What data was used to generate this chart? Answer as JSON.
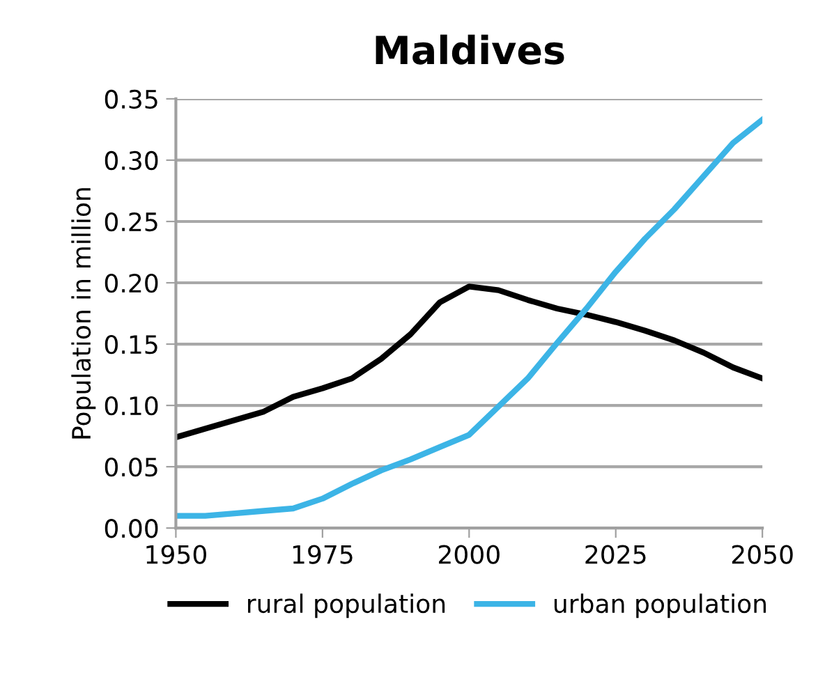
{
  "chart_data": {
    "type": "line",
    "title": "Maldives",
    "ylabel": "Population in million",
    "x": [
      1950,
      1955,
      1960,
      1965,
      1970,
      1975,
      1980,
      1985,
      1990,
      1995,
      2000,
      2005,
      2010,
      2015,
      2020,
      2025,
      2030,
      2035,
      2040,
      2045,
      2050
    ],
    "series": [
      {
        "name": "rural population",
        "color": "#000000",
        "values": [
          0.074,
          0.081,
          0.088,
          0.095,
          0.107,
          0.114,
          0.122,
          0.138,
          0.158,
          0.184,
          0.197,
          0.194,
          0.186,
          0.179,
          0.174,
          0.168,
          0.161,
          0.153,
          0.143,
          0.131,
          0.122
        ]
      },
      {
        "name": "urban population",
        "color": "#3cb4e6",
        "values": [
          0.01,
          0.01,
          0.012,
          0.014,
          0.016,
          0.024,
          0.036,
          0.047,
          0.056,
          0.066,
          0.076,
          0.099,
          0.122,
          0.151,
          0.179,
          0.209,
          0.236,
          0.26,
          0.287,
          0.314,
          0.333
        ]
      }
    ],
    "xlim": [
      1950,
      2050
    ],
    "xticks": [
      1950,
      1975,
      2000,
      2025,
      2050
    ],
    "ylim": [
      0,
      0.35
    ],
    "yticks": [
      {
        "value": 0,
        "label": "0.00"
      },
      {
        "value": 0.05,
        "label": "0.05"
      },
      {
        "value": 0.1,
        "label": "0.10"
      },
      {
        "value": 0.15,
        "label": "0.15"
      },
      {
        "value": 0.2,
        "label": "0.20"
      },
      {
        "value": 0.25,
        "label": "0.25"
      },
      {
        "value": 0.3,
        "label": "0.30"
      },
      {
        "value": 0.35,
        "label": "0.35"
      }
    ],
    "grid": "y",
    "legend": "bottom",
    "marker": "none",
    "line_style": "solid"
  }
}
